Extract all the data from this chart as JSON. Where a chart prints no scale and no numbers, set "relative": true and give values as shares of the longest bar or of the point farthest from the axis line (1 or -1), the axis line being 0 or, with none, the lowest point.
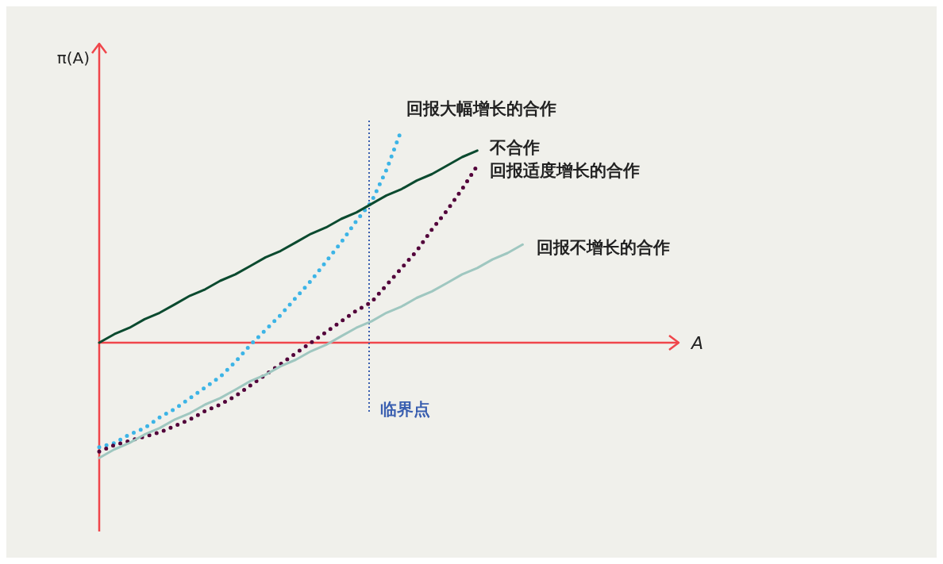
{
  "chart_data": {
    "type": "line",
    "relative": true,
    "ylabel": "π(A)",
    "categories": [
      null,
      null,
      null,
      null,
      null,
      null,
      null,
      null,
      null,
      null,
      null,
      null,
      null,
      null,
      null,
      null,
      null,
      null,
      null,
      null,
      null,
      null,
      null,
      null,
      null,
      null,
      null,
      null,
      null
    ],
    "series": [
      {
        "name": "回报大幅增长的合作",
        "color": "#3cb4e6",
        "line_style": "dotted",
        "values": [
          -0.49,
          -0.47,
          -0.43,
          -0.4,
          -0.35,
          -0.31,
          -0.26,
          -0.21,
          -0.16,
          -0.09,
          -0.01,
          0.06,
          0.13,
          0.21,
          0.29,
          0.38,
          0.47,
          0.57,
          0.66,
          0.81,
          1.0,
          null,
          null,
          null,
          null,
          null,
          null,
          null,
          null
        ]
      },
      {
        "name": "不合作",
        "color": "#0b4a2f",
        "line_style": "solid",
        "values": [
          0,
          0.04,
          0.07,
          0.11,
          0.14,
          0.18,
          0.22,
          0.25,
          0.29,
          0.32,
          0.36,
          0.4,
          0.43,
          0.47,
          0.51,
          0.54,
          0.58,
          0.61,
          0.65,
          0.69,
          0.72,
          0.76,
          0.79,
          0.83,
          0.87,
          0.9,
          null,
          null,
          null
        ]
      },
      {
        "name": "回报适度增长的合作",
        "color": "#52003a",
        "line_style": "dotted",
        "values": [
          -0.51,
          -0.48,
          -0.46,
          -0.44,
          -0.42,
          -0.39,
          -0.36,
          -0.32,
          -0.29,
          -0.25,
          -0.2,
          -0.15,
          -0.1,
          -0.05,
          0.0,
          0.05,
          0.1,
          0.15,
          0.19,
          0.27,
          0.35,
          0.43,
          0.53,
          0.62,
          0.72,
          0.83,
          null,
          null,
          null
        ]
      },
      {
        "name": "回报不增长的合作",
        "color": "#9fc7c0",
        "line_style": "solid",
        "values": [
          -0.54,
          -0.5,
          -0.47,
          -0.43,
          -0.4,
          -0.36,
          -0.33,
          -0.29,
          -0.26,
          -0.22,
          -0.18,
          -0.15,
          -0.11,
          -0.08,
          -0.04,
          -0.01,
          0.03,
          0.07,
          0.1,
          0.14,
          0.17,
          0.21,
          0.24,
          0.28,
          0.32,
          0.35,
          0.39,
          0.42,
          0.46
        ]
      }
    ],
    "ref_lines": [
      {
        "axis": "y",
        "value": 0,
        "color": "#f0464b",
        "line_style": "solid"
      }
    ],
    "annotations": [
      "A",
      "临界点"
    ]
  }
}
